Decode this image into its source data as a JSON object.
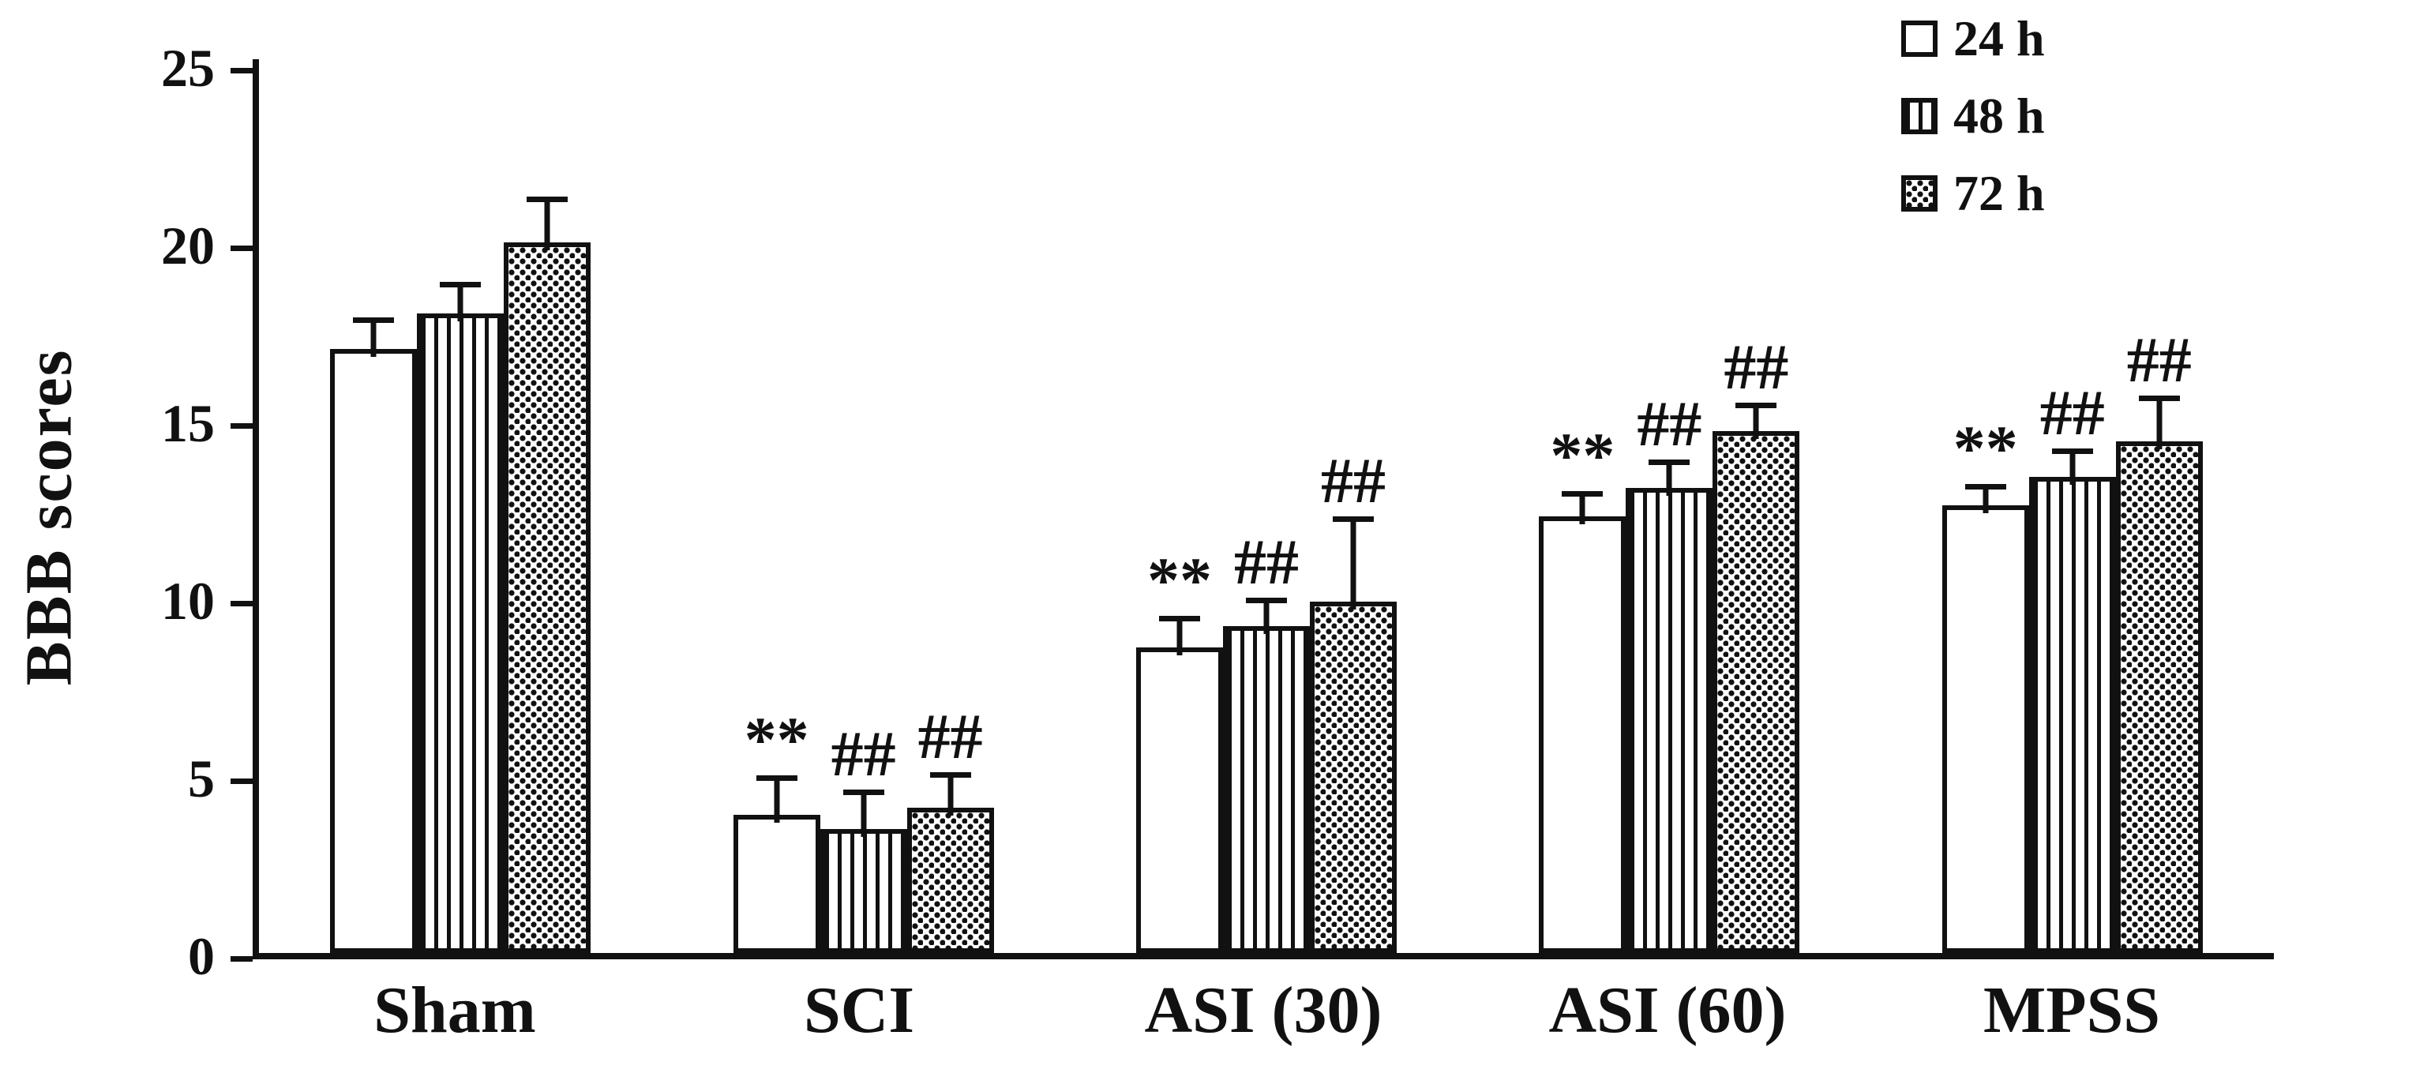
{
  "chart_data": {
    "type": "bar",
    "title": "",
    "xlabel": "",
    "ylabel": "BBB scores",
    "ylim": [
      0,
      25
    ],
    "yticks": [
      0,
      5,
      10,
      15,
      20,
      25
    ],
    "grid": false,
    "legend_position": "top-right",
    "bar_fill_color": "#ffffff",
    "pattern_color": "#111111",
    "categories": [
      "Sham",
      "SCI",
      "ASI (30)",
      "ASI (60)",
      "MPSS"
    ],
    "series": [
      {
        "name": "24 h",
        "pattern": "open",
        "values": [
          17.0,
          3.9,
          8.6,
          12.3,
          12.6
        ],
        "errors": [
          0.9,
          1.1,
          0.9,
          0.7,
          0.6
        ],
        "sig": [
          "",
          "**",
          "**",
          "**",
          "**"
        ]
      },
      {
        "name": "48 h",
        "pattern": "vertical-stripes",
        "values": [
          18.0,
          3.5,
          9.2,
          13.1,
          13.4
        ],
        "errors": [
          0.9,
          1.1,
          0.8,
          0.8,
          0.8
        ],
        "sig": [
          "",
          "##",
          "##",
          "##",
          "##"
        ]
      },
      {
        "name": "72 h",
        "pattern": "dots",
        "values": [
          20.0,
          4.1,
          9.9,
          14.7,
          14.4
        ],
        "errors": [
          1.3,
          1.0,
          2.4,
          0.8,
          1.3
        ],
        "sig": [
          "",
          "##",
          "##",
          "##",
          "##"
        ]
      }
    ]
  }
}
